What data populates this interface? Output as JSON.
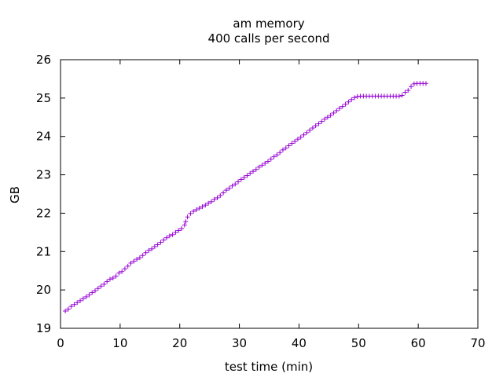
{
  "chart_data": {
    "type": "scatter",
    "title": "am memory",
    "subtitle": "400 calls per second",
    "xlabel": "test time (min)",
    "ylabel": "GB",
    "xlim": [
      0,
      70
    ],
    "ylim": [
      19,
      26
    ],
    "xticks": [
      0,
      10,
      20,
      30,
      40,
      50,
      60,
      70
    ],
    "yticks": [
      19,
      20,
      21,
      22,
      23,
      24,
      25,
      26
    ],
    "xtick_labels": [
      "0",
      "10",
      "20",
      "30",
      "40",
      "50",
      "60",
      "70"
    ],
    "ytick_labels": [
      "19",
      "20",
      "21",
      "22",
      "23",
      "24",
      "25",
      "26"
    ],
    "grid": false,
    "marker": "plus",
    "color": "#9400d3",
    "series": [
      {
        "x": [
          0.8,
          1.3,
          1.8,
          2.3,
          2.8,
          3.3,
          3.8,
          4.3,
          4.8,
          5.3,
          5.8,
          6.3,
          6.8,
          7.3,
          7.8,
          8.3,
          8.8,
          9.3,
          9.8,
          10.3,
          10.8,
          11.3,
          11.8,
          12.3,
          12.8,
          13.3,
          13.8,
          14.3,
          14.8,
          15.3,
          15.8,
          16.3,
          16.8,
          17.3,
          17.8,
          18.3,
          18.8,
          19.3,
          19.8,
          20.3,
          20.8,
          21.0,
          21.3,
          21.8,
          22.3,
          22.8,
          23.3,
          23.8,
          24.3,
          24.8,
          25.3,
          25.8,
          26.3,
          26.8,
          27.3,
          27.8,
          28.3,
          28.8,
          29.3,
          29.8,
          30.3,
          30.8,
          31.3,
          31.8,
          32.3,
          32.8,
          33.3,
          33.8,
          34.3,
          34.8,
          35.3,
          35.8,
          36.3,
          36.8,
          37.3,
          37.8,
          38.3,
          38.8,
          39.3,
          39.8,
          40.3,
          40.8,
          41.3,
          41.8,
          42.3,
          42.8,
          43.3,
          43.8,
          44.3,
          44.8,
          45.3,
          45.8,
          46.3,
          46.8,
          47.3,
          47.8,
          48.3,
          48.8,
          49.3,
          49.8,
          50.3,
          50.8,
          51.3,
          51.8,
          52.3,
          52.8,
          53.3,
          53.8,
          54.3,
          54.8,
          55.3,
          55.8,
          56.3,
          56.8,
          57.3,
          57.8,
          58.3,
          58.8,
          59.3,
          59.8,
          60.3,
          60.8,
          61.3
        ],
        "y": [
          19.45,
          19.5,
          19.57,
          19.62,
          19.67,
          19.72,
          19.77,
          19.82,
          19.87,
          19.93,
          19.98,
          20.04,
          20.1,
          20.15,
          20.22,
          20.28,
          20.31,
          20.36,
          20.44,
          20.48,
          20.55,
          20.62,
          20.7,
          20.75,
          20.8,
          20.84,
          20.9,
          20.97,
          21.03,
          21.07,
          21.13,
          21.18,
          21.24,
          21.3,
          21.36,
          21.41,
          21.44,
          21.5,
          21.55,
          21.6,
          21.69,
          21.78,
          21.9,
          21.99,
          22.05,
          22.09,
          22.13,
          22.17,
          22.21,
          22.26,
          22.3,
          22.36,
          22.4,
          22.46,
          22.53,
          22.6,
          22.65,
          22.71,
          22.76,
          22.82,
          22.88,
          22.93,
          22.98,
          23.04,
          23.09,
          23.14,
          23.2,
          23.25,
          23.3,
          23.35,
          23.41,
          23.47,
          23.52,
          23.58,
          23.65,
          23.7,
          23.76,
          23.82,
          23.87,
          23.93,
          23.98,
          24.04,
          24.1,
          24.16,
          24.22,
          24.28,
          24.33,
          24.39,
          24.45,
          24.5,
          24.55,
          24.61,
          24.67,
          24.73,
          24.78,
          24.84,
          24.9,
          24.96,
          25.01,
          25.04,
          25.05,
          25.05,
          25.05,
          25.05,
          25.05,
          25.05,
          25.05,
          25.05,
          25.05,
          25.05,
          25.05,
          25.05,
          25.05,
          25.05,
          25.07,
          25.15,
          25.2,
          25.3,
          25.37,
          25.38,
          25.38,
          25.38,
          25.38
        ]
      }
    ]
  }
}
